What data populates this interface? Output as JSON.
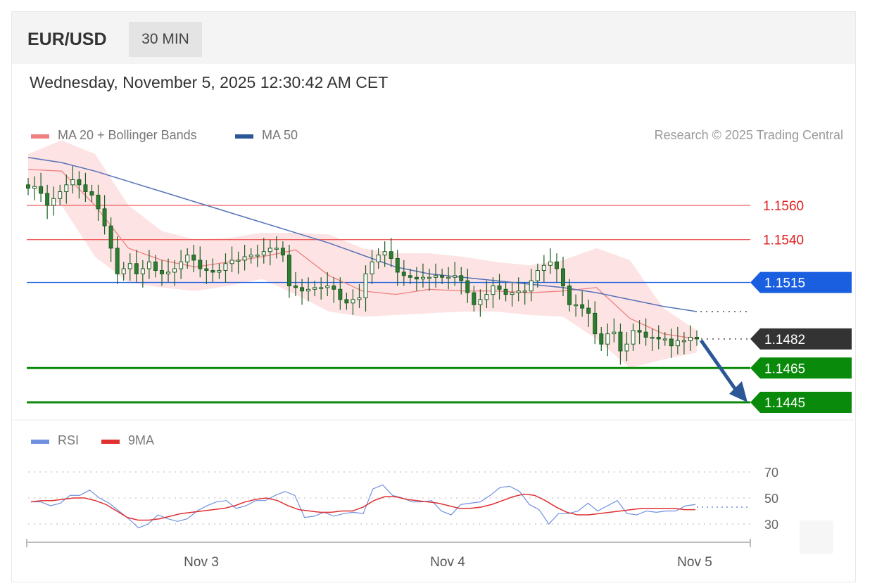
{
  "header": {
    "pair": "EUR/USD",
    "timeframe": "30 MIN",
    "datetime": "Wednesday, November 5, 2025 12:30:42 AM CET",
    "credit": "Research © 2025 Trading Central"
  },
  "legend": {
    "ma20": "MA 20 + Bollinger Bands",
    "ma50": "MA 50",
    "rsi": "RSI",
    "rsi_ma": "9MA"
  },
  "colors": {
    "candle_up": "#2e7d32",
    "candle_down": "#2e7d32",
    "ma20": "#f08080",
    "bands": "#fde0e0",
    "ma50": "#5572b8",
    "resistance": "#f06060",
    "pivot": "#1a5fe0",
    "support": "#0a8a0a",
    "last_price": "#333333",
    "rsi": "#6f8fe0",
    "rsi_ma": "#e03030",
    "arrow": "#2b5797"
  },
  "chart_data": [
    {
      "type": "candlestick",
      "title": "EUR/USD",
      "ylim": [
        1.1435,
        1.16
      ],
      "x_ticks": [
        "Nov 3",
        "Nov 4",
        "Nov 5"
      ],
      "series": {
        "ma50": [
          1.1588,
          1.1585,
          1.158,
          1.1574,
          1.1568,
          1.1562,
          1.1556,
          1.155,
          1.1544,
          1.1538,
          1.1531,
          1.1524,
          1.152,
          1.1518,
          1.1516,
          1.1514,
          1.1512,
          1.1509,
          1.1505,
          1.1501,
          1.1498
        ],
        "ma20": [
          1.1581,
          1.158,
          1.156,
          1.1535,
          1.1528,
          1.1524,
          1.1527,
          1.153,
          1.1534,
          1.1519,
          1.151,
          1.1508,
          1.1511,
          1.151,
          1.151,
          1.1509,
          1.151,
          1.1512,
          1.1494,
          1.1485,
          1.1482
        ],
        "bb_upper": [
          1.159,
          1.1598,
          1.159,
          1.156,
          1.1545,
          1.154,
          1.1541,
          1.1544,
          1.1544,
          1.1543,
          1.1535,
          1.1532,
          1.1532,
          1.153,
          1.1527,
          1.1525,
          1.1528,
          1.1535,
          1.1528,
          1.15,
          1.1487
        ],
        "bb_lower": [
          1.1572,
          1.156,
          1.153,
          1.1515,
          1.1512,
          1.151,
          1.1513,
          1.1517,
          1.1508,
          1.1498,
          1.1495,
          1.1496,
          1.1497,
          1.1498,
          1.1498,
          1.1496,
          1.1495,
          1.1482,
          1.1465,
          1.147,
          1.1474
        ]
      },
      "levels": [
        {
          "name": "resistance",
          "value": 1.156,
          "label": "1.1560"
        },
        {
          "name": "resistance",
          "value": 1.154,
          "label": "1.1540"
        },
        {
          "name": "pivot",
          "value": 1.1515,
          "label": "1.1515"
        },
        {
          "name": "last_price",
          "value": 1.1482,
          "label": "1.1482"
        },
        {
          "name": "support",
          "value": 1.1465,
          "label": "1.1465"
        },
        {
          "name": "support",
          "value": 1.1445,
          "label": "1.1445"
        }
      ],
      "forecast": {
        "direction": "down",
        "from": 1.1482,
        "to": 1.1445
      },
      "candles_close": [
        1.157,
        1.1571,
        1.1567,
        1.156,
        1.1564,
        1.1568,
        1.1572,
        1.1575,
        1.1572,
        1.1568,
        1.1566,
        1.1558,
        1.1548,
        1.1535,
        1.152,
        1.1523,
        1.1526,
        1.152,
        1.1523,
        1.1527,
        1.1522,
        1.152,
        1.1521,
        1.1523,
        1.1527,
        1.1531,
        1.1528,
        1.1523,
        1.1522,
        1.1521,
        1.1522,
        1.1526,
        1.1528,
        1.1528,
        1.153,
        1.1531,
        1.1531,
        1.1533,
        1.1535,
        1.1535,
        1.1531,
        1.1513,
        1.1512,
        1.151,
        1.1511,
        1.1512,
        1.1512,
        1.1513,
        1.1511,
        1.1505,
        1.1503,
        1.1505,
        1.1506,
        1.152,
        1.1527,
        1.1531,
        1.1533,
        1.1529,
        1.1521,
        1.1519,
        1.1518,
        1.1517,
        1.1518,
        1.1518,
        1.1519,
        1.1518,
        1.1518,
        1.1519,
        1.1516,
        1.1509,
        1.1502,
        1.1505,
        1.1508,
        1.1513,
        1.1511,
        1.1508,
        1.1509,
        1.151,
        1.151,
        1.1516,
        1.1522,
        1.1525,
        1.1527,
        1.1523,
        1.1513,
        1.1502,
        1.1502,
        1.15,
        1.1497,
        1.1485,
        1.1479,
        1.1485,
        1.1486,
        1.1475,
        1.1479,
        1.1487,
        1.1486,
        1.1483,
        1.1483,
        1.1482,
        1.1482,
        1.1478,
        1.1481,
        1.1481,
        1.1483,
        1.1482
      ]
    },
    {
      "type": "line",
      "title": "RSI",
      "ylim": [
        20,
        80
      ],
      "y_ticks": [
        70,
        50,
        30
      ],
      "series": [
        {
          "name": "RSI",
          "values": [
            47,
            47,
            44,
            46,
            52,
            52,
            56,
            50,
            46,
            40,
            34,
            27,
            30,
            37,
            34,
            32,
            34,
            40,
            44,
            47,
            48,
            42,
            44,
            48,
            48,
            52,
            55,
            52,
            35,
            36,
            39,
            36,
            38,
            39,
            38,
            57,
            60,
            52,
            50,
            47,
            47,
            48,
            40,
            37,
            45,
            46,
            47,
            52,
            58,
            59,
            55,
            45,
            41,
            30,
            38,
            38,
            40,
            46,
            40,
            44,
            48,
            38,
            37,
            40,
            39,
            40,
            40,
            44,
            45
          ]
        },
        {
          "name": "9MA",
          "values": [
            47,
            48,
            48,
            49,
            50,
            50,
            48,
            45,
            40,
            35,
            33,
            33,
            34,
            36,
            38,
            39,
            40,
            41,
            42,
            44,
            47,
            49,
            50,
            48,
            44,
            41,
            40,
            39,
            39,
            40,
            40,
            43,
            48,
            51,
            51,
            49,
            48,
            47,
            46,
            44,
            42,
            42,
            43,
            45,
            48,
            51,
            53,
            52,
            48,
            43,
            39,
            37,
            37,
            38,
            39,
            40,
            41,
            42,
            42,
            42,
            42,
            41,
            41
          ]
        }
      ],
      "last_value": 43
    }
  ]
}
